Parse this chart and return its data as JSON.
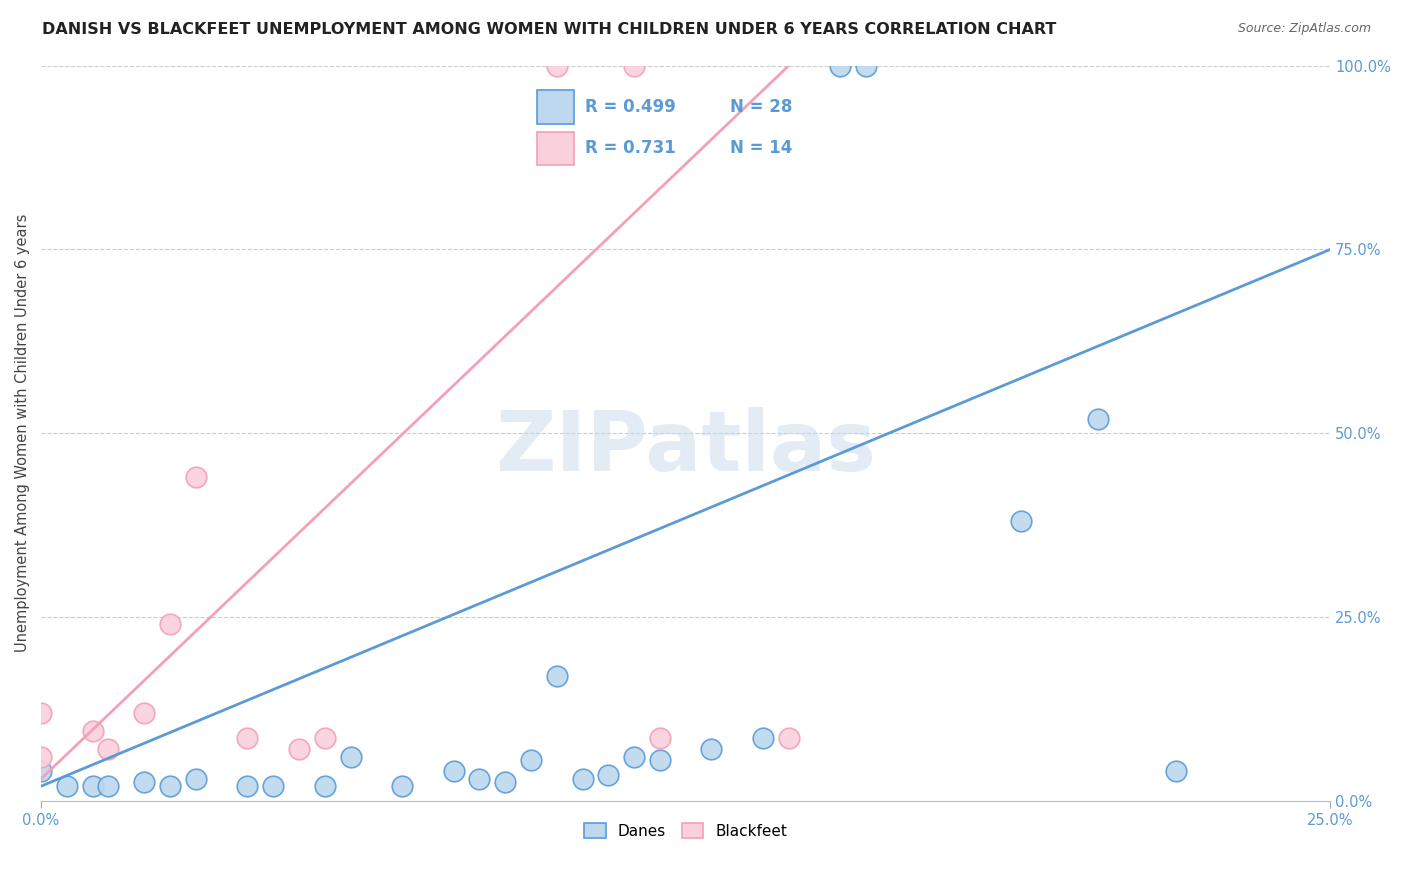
{
  "title": "DANISH VS BLACKFEET UNEMPLOYMENT AMONG WOMEN WITH CHILDREN UNDER 6 YEARS CORRELATION CHART",
  "source": "Source: ZipAtlas.com",
  "ylabel": "Unemployment Among Women with Children Under 6 years",
  "xlim": [
    0,
    0.25
  ],
  "ylim": [
    0,
    1.0
  ],
  "xtick_labels": [
    "0.0%",
    "25.0%"
  ],
  "ytick_labels": [
    "0.0%",
    "25.0%",
    "50.0%",
    "75.0%",
    "100.0%"
  ],
  "ytick_values": [
    0.0,
    0.25,
    0.5,
    0.75,
    1.0
  ],
  "xtick_values": [
    0.0,
    0.25
  ],
  "danes_color": "#5B9BD5",
  "danes_color_light": "#BDD7EE",
  "blackfeet_color": "#F4A0B5",
  "blackfeet_color_light": "#FAD0DC",
  "danes_R": 0.499,
  "danes_N": 28,
  "blackfeet_R": 0.731,
  "blackfeet_N": 14,
  "danes_x": [
    0.0,
    0.005,
    0.01,
    0.013,
    0.02,
    0.025,
    0.03,
    0.04,
    0.045,
    0.055,
    0.06,
    0.07,
    0.08,
    0.085,
    0.09,
    0.095,
    0.1,
    0.105,
    0.11,
    0.115,
    0.12,
    0.13,
    0.14,
    0.155,
    0.16,
    0.19,
    0.205,
    0.22
  ],
  "danes_y": [
    0.04,
    0.02,
    0.02,
    0.02,
    0.025,
    0.02,
    0.03,
    0.02,
    0.02,
    0.02,
    0.06,
    0.02,
    0.04,
    0.03,
    0.025,
    0.055,
    0.17,
    0.03,
    0.035,
    0.06,
    0.055,
    0.07,
    0.085,
    1.0,
    1.0,
    0.38,
    0.52,
    0.04
  ],
  "blackfeet_x": [
    0.0,
    0.0,
    0.01,
    0.013,
    0.02,
    0.025,
    0.03,
    0.04,
    0.05,
    0.055,
    0.1,
    0.115,
    0.12,
    0.145
  ],
  "blackfeet_y": [
    0.06,
    0.12,
    0.095,
    0.07,
    0.12,
    0.24,
    0.44,
    0.085,
    0.07,
    0.085,
    1.0,
    1.0,
    0.085,
    0.085
  ],
  "danes_line_x": [
    0.0,
    0.25
  ],
  "danes_line_y": [
    0.02,
    0.75
  ],
  "blackfeet_line_x": [
    0.0,
    0.145
  ],
  "blackfeet_line_y": [
    0.03,
    1.0
  ],
  "watermark": "ZIPatlas",
  "background_color": "#FFFFFF",
  "grid_color": "#CCCCCC",
  "title_fontsize": 11.5,
  "axis_label_fontsize": 10.5,
  "tick_fontsize": 10.5
}
